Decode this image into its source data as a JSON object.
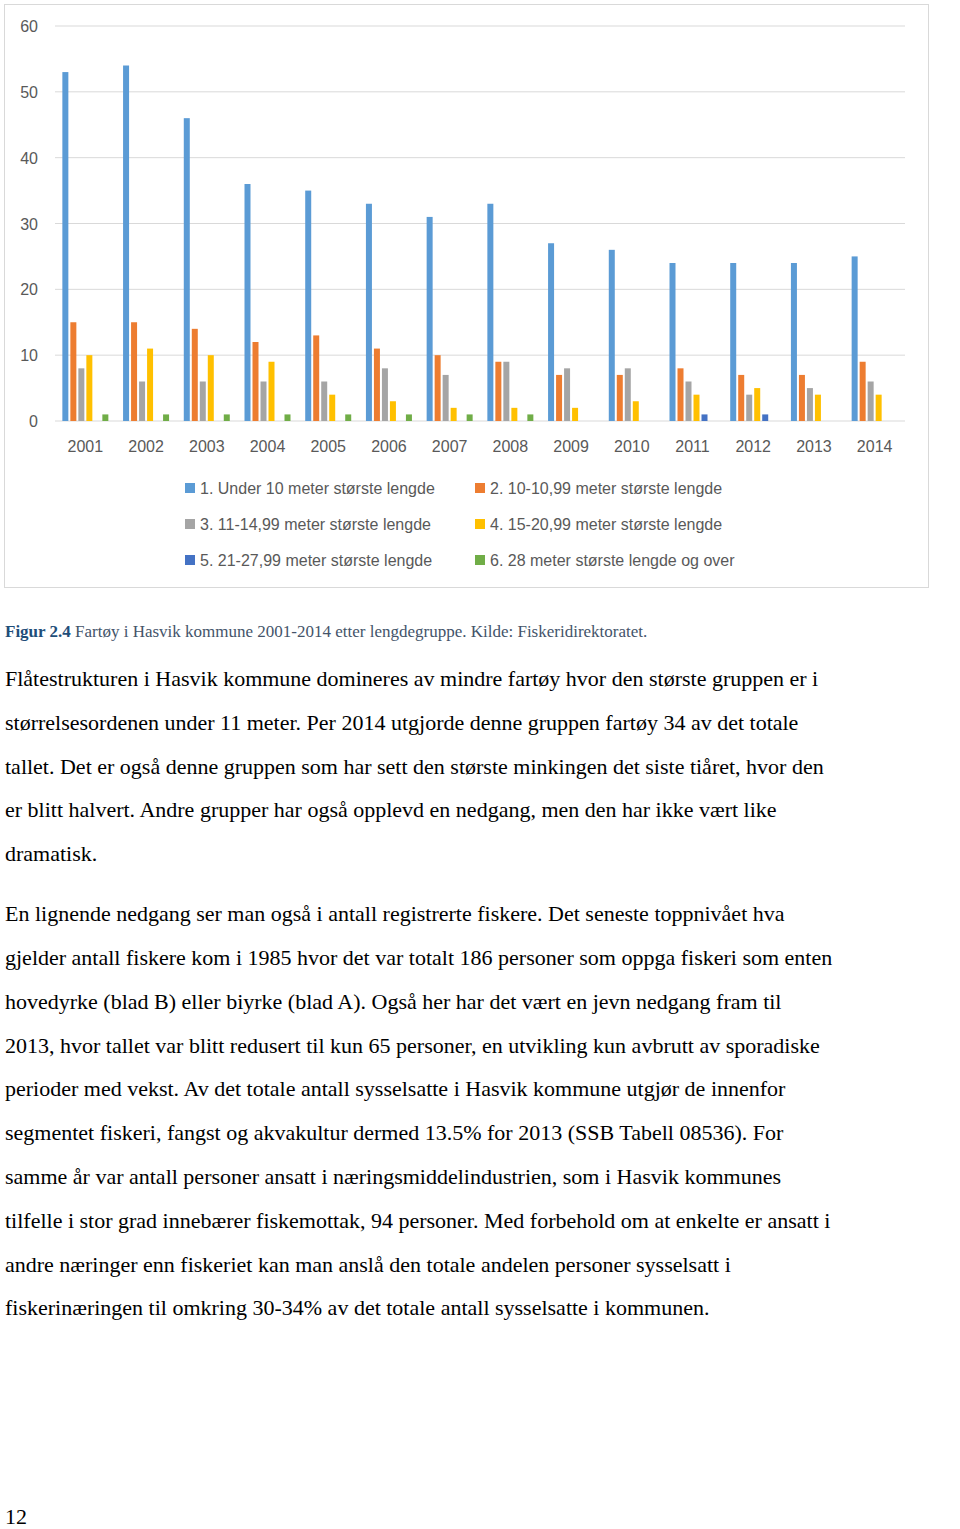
{
  "chart_data": {
    "type": "bar",
    "categories": [
      "2001",
      "2002",
      "2003",
      "2004",
      "2005",
      "2006",
      "2007",
      "2008",
      "2009",
      "2010",
      "2011",
      "2012",
      "2013",
      "2014"
    ],
    "series": [
      {
        "name": "1. Under 10 meter største lengde",
        "color": "#5b9bd5",
        "values": [
          53,
          54,
          46,
          36,
          35,
          33,
          31,
          33,
          27,
          26,
          24,
          24,
          24,
          25
        ]
      },
      {
        "name": "2. 10-10,99 meter største lengde",
        "color": "#ed7d31",
        "values": [
          15,
          15,
          14,
          12,
          13,
          11,
          10,
          9,
          7,
          7,
          8,
          7,
          7,
          9
        ]
      },
      {
        "name": "3. 11-14,99 meter største lengde",
        "color": "#a5a5a5",
        "values": [
          8,
          6,
          6,
          6,
          6,
          8,
          7,
          9,
          8,
          8,
          6,
          4,
          5,
          6
        ]
      },
      {
        "name": "4. 15-20,99 meter største lengde",
        "color": "#ffc000",
        "values": [
          10,
          11,
          10,
          9,
          4,
          3,
          2,
          2,
          2,
          3,
          4,
          5,
          4,
          4
        ]
      },
      {
        "name": "5. 21-27,99 meter største lengde",
        "color": "#4472c4",
        "values": [
          0,
          0,
          0,
          0,
          0,
          0,
          0,
          0,
          0,
          0,
          1,
          1,
          0,
          0
        ]
      },
      {
        "name": "6. 28 meter største lengde og over",
        "color": "#70ad47",
        "values": [
          1,
          1,
          1,
          1,
          1,
          1,
          1,
          1,
          0,
          0,
          0,
          0,
          0,
          0
        ]
      }
    ],
    "ylim": [
      0,
      60
    ],
    "yticks": [
      0,
      10,
      20,
      30,
      40,
      50,
      60
    ],
    "grid": true,
    "legend": "bottom"
  },
  "caption": {
    "label": "Figur 2.4",
    "text": "Fartøy i Hasvik kommune 2001-2014 etter lengdegruppe. Kilde: Fiskeridirektoratet."
  },
  "paragraphs": [
    {
      "lines": [
        "Flåtestrukturen i Hasvik kommune domineres av mindre fartøy hvor den største gruppen er i",
        "størrelsesordenen under 11 meter. Per 2014 utgjorde denne gruppen fartøy 34 av det totale",
        "tallet. Det er også denne gruppen som har sett den største minkingen det siste tiåret, hvor den",
        "er blitt halvert. Andre grupper har også opplevd en nedgang, men den har ikke vært like",
        "dramatisk."
      ]
    },
    {
      "lines": [
        "En lignende nedgang ser man også i antall registrerte fiskere. Det seneste toppnivået hva",
        "gjelder antall fiskere kom i 1985 hvor det var totalt 186 personer som oppga fiskeri som enten",
        "hovedyrke (blad B) eller biyrke (blad A). Også her har det vært en jevn nedgang fram til",
        "2013, hvor tallet var blitt redusert til kun 65 personer, en utvikling kun avbrutt av sporadiske",
        "perioder med vekst. Av det totale antall sysselsatte i Hasvik kommune utgjør de innenfor",
        "segmentet fiskeri, fangst og akvakultur dermed 13.5% for 2013 (SSB Tabell 08536). For",
        "samme år var antall personer ansatt i næringsmiddelindustrien, som i Hasvik kommunes",
        "tilfelle i stor grad innebærer fiskemottak, 94 personer. Med forbehold om at enkelte er ansatt i",
        "andre næringer enn fiskeriet kan man anslå den totale andelen personer sysselsatt i",
        "fiskerinæringen til omkring 30-34% av det totale antall sysselsatte i kommunen."
      ]
    }
  ],
  "page_number": "12"
}
